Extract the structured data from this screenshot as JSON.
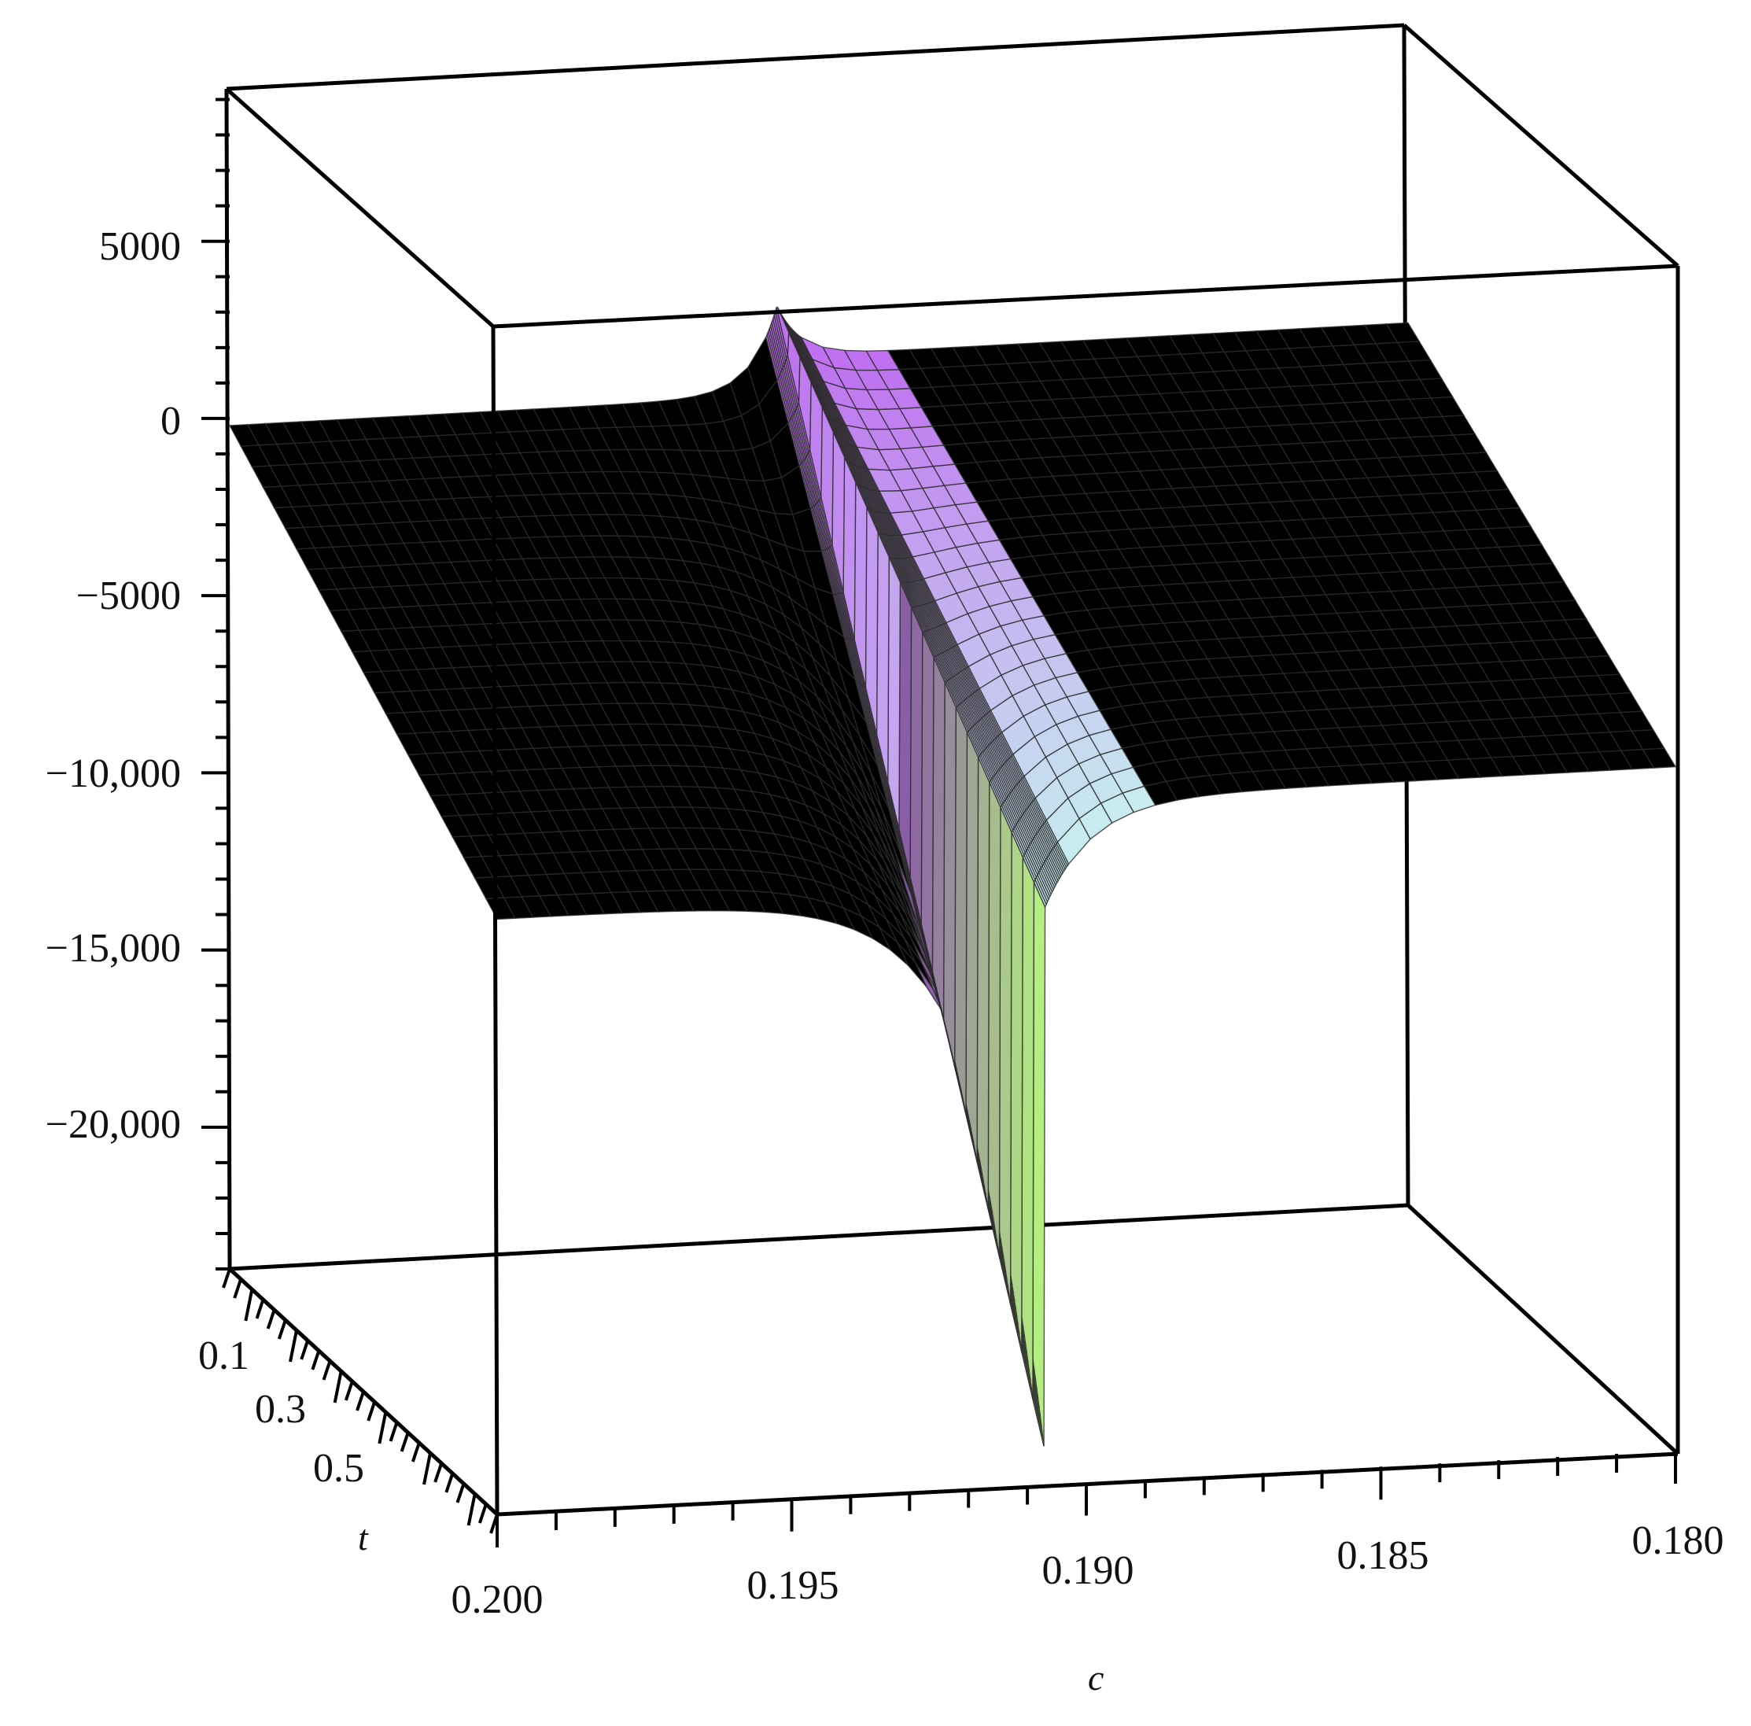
{
  "chart_data": {
    "type": "surface3d",
    "title": "",
    "xlabel": "c",
    "ylabel": "t",
    "zlabel": "",
    "x_ticks": [
      "0.200",
      "0.195",
      "0.190",
      "0.185",
      "0.180"
    ],
    "y_ticks": [
      "0.1",
      "0.3",
      "0.5"
    ],
    "z_ticks": [
      "5000",
      "0",
      "−5000",
      "−10,000",
      "−15,000",
      "−20,000"
    ],
    "xlim": [
      0.2,
      0.18
    ],
    "ylim": [
      0,
      0.6
    ],
    "zlim": [
      -24000,
      9300
    ],
    "grid": false,
    "colors": {
      "low_c": "#f060f0",
      "high_c": "#40e8e0",
      "mid": "#a0f080"
    },
    "surface": {
      "description_points": [
        {
          "c": 0.2,
          "t": 0.0,
          "z": 0
        },
        {
          "c": 0.2,
          "t": 0.6,
          "z": -7000
        },
        {
          "c": 0.1905,
          "t": 0.6,
          "z": -23500
        },
        {
          "c": 0.1915,
          "t": 0.0,
          "z": 2300
        },
        {
          "c": 0.18,
          "t": 0.0,
          "z": 1000
        },
        {
          "c": 0.18,
          "t": 0.6,
          "z": -4800
        }
      ]
    }
  }
}
